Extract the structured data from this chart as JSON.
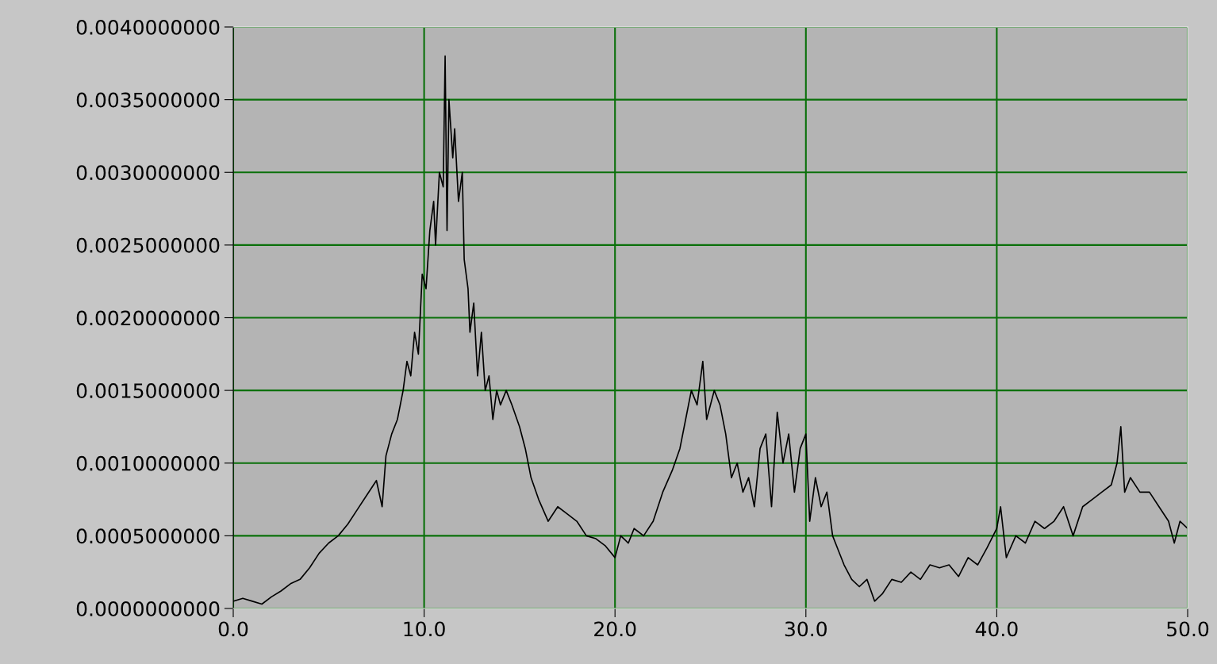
{
  "chart_data": {
    "type": "line",
    "grid": true,
    "xlim": [
      0,
      50
    ],
    "ylim": [
      0,
      0.004
    ],
    "xticks": [
      {
        "value": 0,
        "label": "0.0"
      },
      {
        "value": 10,
        "label": "10.0"
      },
      {
        "value": 20,
        "label": "20.0"
      },
      {
        "value": 30,
        "label": "30.0"
      },
      {
        "value": 40,
        "label": "40.0"
      },
      {
        "value": 50,
        "label": "50.0"
      }
    ],
    "yticks": [
      {
        "value": 0,
        "label": "0.0000000000"
      },
      {
        "value": 0.0005,
        "label": "0.0005000000"
      },
      {
        "value": 0.001,
        "label": "0.0010000000"
      },
      {
        "value": 0.0015,
        "label": "0.0015000000"
      },
      {
        "value": 0.002,
        "label": "0.0020000000"
      },
      {
        "value": 0.0025,
        "label": "0.0025000000"
      },
      {
        "value": 0.003,
        "label": "0.0030000000"
      },
      {
        "value": 0.0035,
        "label": "0.0035000000"
      },
      {
        "value": 0.004,
        "label": "0.0040000000"
      }
    ],
    "x": [
      0,
      0.5,
      1,
      1.5,
      2,
      2.5,
      3,
      3.5,
      4,
      4.5,
      5,
      5.5,
      6,
      6.5,
      7,
      7.5,
      7.8,
      8,
      8.3,
      8.6,
      8.9,
      9.1,
      9.3,
      9.5,
      9.7,
      9.9,
      10.1,
      10.3,
      10.5,
      10.6,
      10.8,
      11.0,
      11.1,
      11.2,
      11.3,
      11.5,
      11.6,
      11.8,
      12.0,
      12.1,
      12.3,
      12.4,
      12.6,
      12.8,
      13.0,
      13.2,
      13.4,
      13.6,
      13.8,
      14.0,
      14.3,
      14.6,
      15.0,
      15.3,
      15.6,
      16,
      16.5,
      17,
      17.5,
      18,
      18.5,
      19,
      19.5,
      20,
      20.3,
      20.7,
      21,
      21.5,
      22,
      22.5,
      23,
      23.4,
      23.7,
      24,
      24.3,
      24.6,
      24.8,
      25.2,
      25.5,
      25.8,
      26.1,
      26.4,
      26.7,
      27,
      27.3,
      27.6,
      27.9,
      28.2,
      28.5,
      28.8,
      29.1,
      29.4,
      29.7,
      30,
      30.2,
      30.5,
      30.8,
      31.1,
      31.4,
      31.7,
      32,
      32.4,
      32.8,
      33.2,
      33.6,
      34,
      34.5,
      35,
      35.5,
      36,
      36.5,
      37,
      37.5,
      38,
      38.5,
      39,
      39.5,
      40,
      40.2,
      40.5,
      41,
      41.5,
      42,
      42.5,
      43,
      43.5,
      44,
      44.5,
      45,
      45.5,
      46,
      46.3,
      46.5,
      46.7,
      47,
      47.5,
      48,
      48.5,
      49,
      49.3,
      49.6,
      50
    ],
    "series": [
      {
        "color": "#000000",
        "values": [
          5e-05,
          7e-05,
          5e-05,
          3e-05,
          8e-05,
          0.00012,
          0.00017,
          0.0002,
          0.00028,
          0.00038,
          0.00045,
          0.0005,
          0.00058,
          0.00068,
          0.00078,
          0.00088,
          0.0007,
          0.00105,
          0.0012,
          0.0013,
          0.0015,
          0.0017,
          0.0016,
          0.0019,
          0.00175,
          0.0023,
          0.0022,
          0.0026,
          0.0028,
          0.0025,
          0.003,
          0.0029,
          0.0038,
          0.0026,
          0.0035,
          0.0031,
          0.0033,
          0.0028,
          0.003,
          0.0024,
          0.0022,
          0.0019,
          0.0021,
          0.0016,
          0.0019,
          0.0015,
          0.0016,
          0.0013,
          0.0015,
          0.0014,
          0.0015,
          0.0014,
          0.00125,
          0.0011,
          0.0009,
          0.00075,
          0.0006,
          0.0007,
          0.00065,
          0.0006,
          0.0005,
          0.00048,
          0.00043,
          0.00035,
          0.0005,
          0.00045,
          0.00055,
          0.0005,
          0.0006,
          0.0008,
          0.00095,
          0.0011,
          0.0013,
          0.0015,
          0.0014,
          0.0017,
          0.0013,
          0.0015,
          0.0014,
          0.0012,
          0.0009,
          0.001,
          0.0008,
          0.0009,
          0.0007,
          0.0011,
          0.0012,
          0.0007,
          0.00135,
          0.001,
          0.0012,
          0.0008,
          0.0011,
          0.0012,
          0.0006,
          0.0009,
          0.0007,
          0.0008,
          0.0005,
          0.0004,
          0.0003,
          0.0002,
          0.00015,
          0.0002,
          5e-05,
          0.0001,
          0.0002,
          0.00018,
          0.00025,
          0.0002,
          0.0003,
          0.00028,
          0.0003,
          0.00022,
          0.00035,
          0.0003,
          0.00042,
          0.00055,
          0.0007,
          0.00035,
          0.0005,
          0.00045,
          0.0006,
          0.00055,
          0.0006,
          0.0007,
          0.0005,
          0.0007,
          0.00075,
          0.0008,
          0.00085,
          0.001,
          0.00125,
          0.0008,
          0.0009,
          0.0008,
          0.0008,
          0.0007,
          0.0006,
          0.00045,
          0.0006,
          0.00055
        ]
      }
    ]
  }
}
